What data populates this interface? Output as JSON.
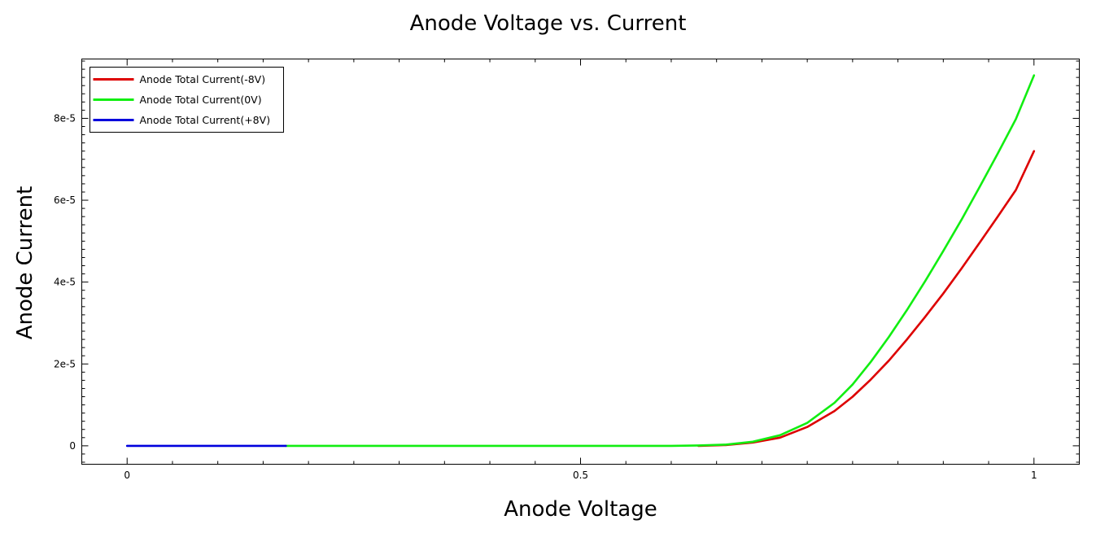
{
  "chart_data": {
    "type": "line",
    "title": "Anode Voltage vs. Current",
    "xlabel": "Anode Voltage",
    "ylabel": "Anode Current",
    "xlim": [
      -0.05,
      1.05
    ],
    "ylim": [
      -4.5e-06,
      9.45e-05
    ],
    "x_ticks": [
      0,
      0.5,
      1
    ],
    "x_tick_labels": [
      "0",
      "0.5",
      "1"
    ],
    "y_ticks": [
      0,
      2e-05,
      4e-05,
      6e-05,
      8e-05
    ],
    "y_tick_labels": [
      "0",
      "2e-5",
      "4e-5",
      "6e-5",
      "8e-5"
    ],
    "grid": false,
    "legend_position": "top-left",
    "series": [
      {
        "name": "Anode Total Current(-8V)",
        "color": "#dd0000",
        "x": [
          0.63,
          0.66,
          0.69,
          0.72,
          0.75,
          0.78,
          0.8,
          0.82,
          0.84,
          0.86,
          0.88,
          0.9,
          0.92,
          0.94,
          0.96,
          0.98,
          1.0
        ],
        "y": [
          0,
          2e-07,
          8e-07,
          2e-06,
          4.6e-06,
          8.5e-06,
          1.2e-05,
          1.62e-05,
          2.08e-05,
          2.6e-05,
          3.15e-05,
          3.72e-05,
          4.33e-05,
          4.96e-05,
          5.6e-05,
          6.25e-05,
          7.2e-05
        ]
      },
      {
        "name": "Anode Total Current(0V)",
        "color": "#11ee11",
        "x": [
          0.175,
          0.3,
          0.4,
          0.5,
          0.6,
          0.63,
          0.66,
          0.69,
          0.72,
          0.75,
          0.78,
          0.8,
          0.82,
          0.84,
          0.86,
          0.88,
          0.9,
          0.92,
          0.94,
          0.96,
          0.98,
          1.0
        ],
        "y": [
          0,
          0,
          0,
          0,
          0,
          1e-07,
          3e-07,
          1e-06,
          2.6e-06,
          5.6e-06,
          1.05e-05,
          1.5e-05,
          2.05e-05,
          2.66e-05,
          3.32e-05,
          4.02e-05,
          4.76e-05,
          5.52e-05,
          6.32e-05,
          7.14e-05,
          7.98e-05,
          9.05e-05
        ]
      },
      {
        "name": "Anode Total Current(+8V)",
        "color": "#0000dd",
        "x": [
          0,
          0.05,
          0.1,
          0.15,
          0.175
        ],
        "y": [
          0,
          0,
          0,
          0,
          0
        ]
      }
    ]
  }
}
